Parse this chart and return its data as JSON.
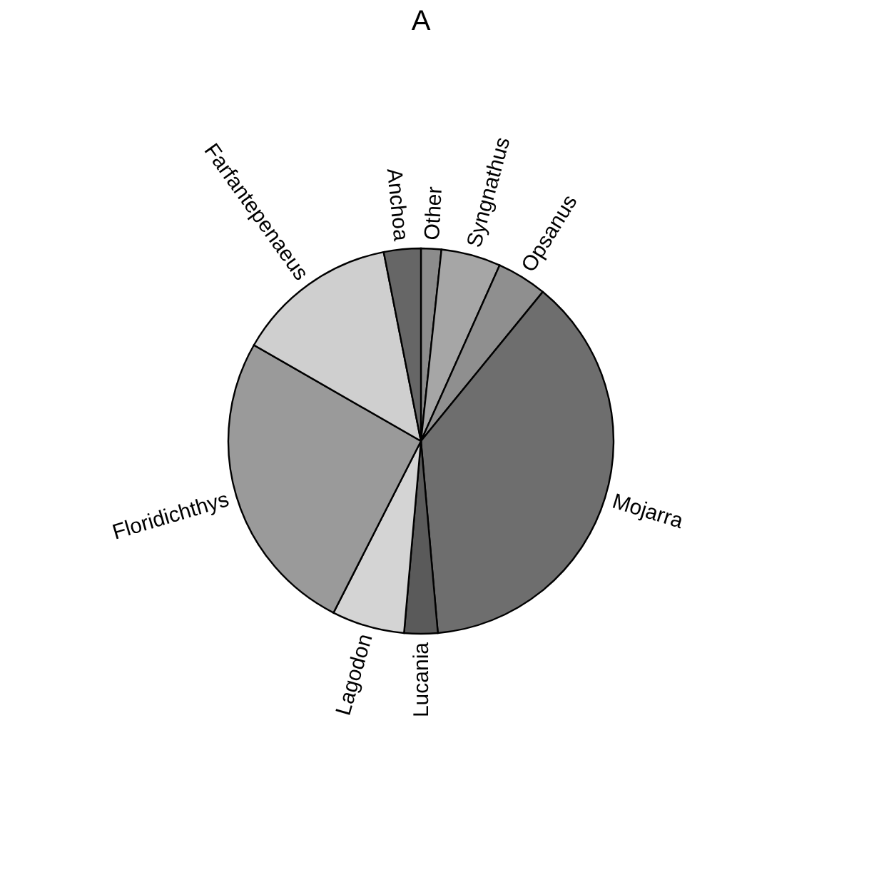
{
  "chart_data": {
    "type": "pie",
    "title": "A",
    "categories": [
      "Other",
      "Syngnathus",
      "Opsanus",
      "Mojarra",
      "Lucania",
      "Lagodon",
      "Floridichthys",
      "Farfantepenaeus",
      "Anchoa"
    ],
    "values": [
      1.7,
      5,
      4.2,
      37.7,
      2.8,
      6.1,
      25.8,
      13.6,
      3.1
    ],
    "colors": [
      "#8c8c8c",
      "#a6a6a6",
      "#8f8f8f",
      "#6e6e6e",
      "#5a5a5a",
      "#d4d4d4",
      "#9a9a9a",
      "#cfcfcf",
      "#666666"
    ],
    "legend": false
  }
}
